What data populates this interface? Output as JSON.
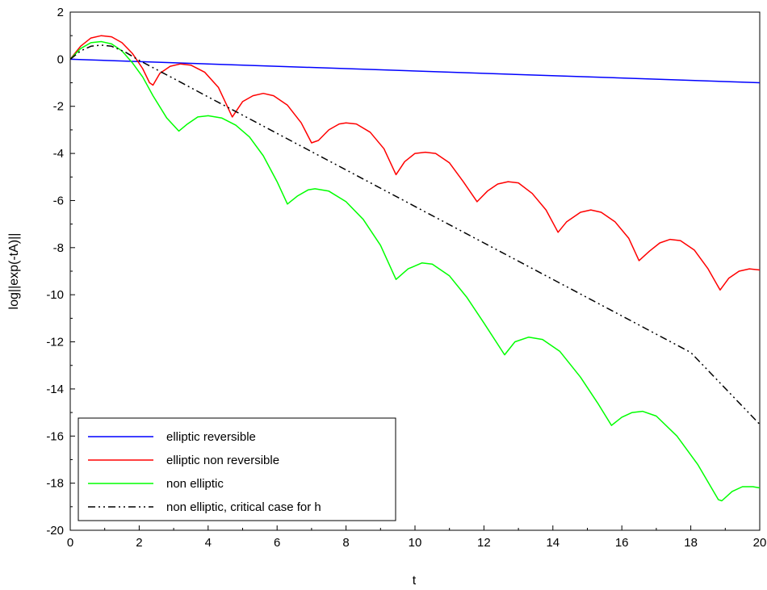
{
  "chart_data": {
    "type": "line",
    "title": "",
    "xlabel": "t",
    "ylabel": "log||exp(-tA)||",
    "xlim": [
      0,
      20
    ],
    "ylim": [
      -20,
      2
    ],
    "x_ticks": [
      0,
      2,
      4,
      6,
      8,
      10,
      12,
      14,
      16,
      18,
      20
    ],
    "y_ticks": [
      2,
      0,
      -2,
      -4,
      -6,
      -8,
      -10,
      -12,
      -14,
      -16,
      -18,
      -20
    ],
    "grid": false,
    "legend_position": "bottom-left",
    "series": [
      {
        "name": "elliptic reversible",
        "color": "#0000ff",
        "style": "solid",
        "points": [
          [
            0,
            0
          ],
          [
            20,
            -1
          ]
        ]
      },
      {
        "name": "elliptic non reversible",
        "color": "#ff0000",
        "style": "solid",
        "points": [
          [
            0,
            0
          ],
          [
            0.3,
            0.55
          ],
          [
            0.6,
            0.9
          ],
          [
            0.9,
            1.0
          ],
          [
            1.2,
            0.95
          ],
          [
            1.5,
            0.7
          ],
          [
            1.8,
            0.25
          ],
          [
            2.1,
            -0.4
          ],
          [
            2.3,
            -1.0
          ],
          [
            2.4,
            -1.1
          ],
          [
            2.6,
            -0.6
          ],
          [
            2.9,
            -0.3
          ],
          [
            3.2,
            -0.2
          ],
          [
            3.5,
            -0.25
          ],
          [
            3.9,
            -0.55
          ],
          [
            4.3,
            -1.2
          ],
          [
            4.7,
            -2.45
          ],
          [
            5.0,
            -1.8
          ],
          [
            5.3,
            -1.55
          ],
          [
            5.6,
            -1.45
          ],
          [
            5.9,
            -1.55
          ],
          [
            6.3,
            -1.95
          ],
          [
            6.7,
            -2.7
          ],
          [
            7.0,
            -3.55
          ],
          [
            7.2,
            -3.45
          ],
          [
            7.5,
            -3.0
          ],
          [
            7.8,
            -2.75
          ],
          [
            8.0,
            -2.7
          ],
          [
            8.3,
            -2.75
          ],
          [
            8.7,
            -3.1
          ],
          [
            9.1,
            -3.8
          ],
          [
            9.45,
            -4.9
          ],
          [
            9.7,
            -4.35
          ],
          [
            10.0,
            -4.0
          ],
          [
            10.3,
            -3.95
          ],
          [
            10.6,
            -4.0
          ],
          [
            11.0,
            -4.4
          ],
          [
            11.4,
            -5.2
          ],
          [
            11.8,
            -6.05
          ],
          [
            12.1,
            -5.6
          ],
          [
            12.4,
            -5.3
          ],
          [
            12.7,
            -5.2
          ],
          [
            13.0,
            -5.25
          ],
          [
            13.4,
            -5.7
          ],
          [
            13.8,
            -6.4
          ],
          [
            14.15,
            -7.35
          ],
          [
            14.4,
            -6.9
          ],
          [
            14.8,
            -6.5
          ],
          [
            15.1,
            -6.4
          ],
          [
            15.4,
            -6.5
          ],
          [
            15.8,
            -6.9
          ],
          [
            16.2,
            -7.6
          ],
          [
            16.5,
            -8.55
          ],
          [
            16.8,
            -8.15
          ],
          [
            17.1,
            -7.8
          ],
          [
            17.4,
            -7.65
          ],
          [
            17.7,
            -7.7
          ],
          [
            18.1,
            -8.1
          ],
          [
            18.5,
            -8.9
          ],
          [
            18.85,
            -9.8
          ],
          [
            19.1,
            -9.3
          ],
          [
            19.4,
            -9.0
          ],
          [
            19.7,
            -8.9
          ],
          [
            20.0,
            -8.95
          ]
        ]
      },
      {
        "name": "non elliptic",
        "color": "#00ff00",
        "style": "solid",
        "points": [
          [
            0,
            0
          ],
          [
            0.3,
            0.45
          ],
          [
            0.6,
            0.7
          ],
          [
            0.9,
            0.75
          ],
          [
            1.2,
            0.65
          ],
          [
            1.5,
            0.35
          ],
          [
            1.8,
            -0.15
          ],
          [
            2.1,
            -0.75
          ],
          [
            2.4,
            -1.55
          ],
          [
            2.8,
            -2.5
          ],
          [
            3.15,
            -3.05
          ],
          [
            3.4,
            -2.75
          ],
          [
            3.7,
            -2.45
          ],
          [
            4.0,
            -2.4
          ],
          [
            4.4,
            -2.5
          ],
          [
            4.8,
            -2.8
          ],
          [
            5.2,
            -3.3
          ],
          [
            5.6,
            -4.1
          ],
          [
            6.0,
            -5.2
          ],
          [
            6.3,
            -6.15
          ],
          [
            6.6,
            -5.8
          ],
          [
            6.9,
            -5.55
          ],
          [
            7.1,
            -5.5
          ],
          [
            7.5,
            -5.6
          ],
          [
            8.0,
            -6.05
          ],
          [
            8.5,
            -6.8
          ],
          [
            9.0,
            -7.9
          ],
          [
            9.45,
            -9.35
          ],
          [
            9.8,
            -8.9
          ],
          [
            10.2,
            -8.65
          ],
          [
            10.5,
            -8.7
          ],
          [
            11.0,
            -9.2
          ],
          [
            11.5,
            -10.1
          ],
          [
            12.0,
            -11.2
          ],
          [
            12.6,
            -12.55
          ],
          [
            12.9,
            -12.0
          ],
          [
            13.3,
            -11.8
          ],
          [
            13.7,
            -11.9
          ],
          [
            14.2,
            -12.4
          ],
          [
            14.8,
            -13.5
          ],
          [
            15.3,
            -14.6
          ],
          [
            15.7,
            -15.55
          ],
          [
            16.0,
            -15.2
          ],
          [
            16.3,
            -15.0
          ],
          [
            16.6,
            -14.95
          ],
          [
            17.0,
            -15.15
          ],
          [
            17.6,
            -16.0
          ],
          [
            18.2,
            -17.2
          ],
          [
            18.8,
            -18.7
          ],
          [
            18.9,
            -18.75
          ],
          [
            19.2,
            -18.35
          ],
          [
            19.5,
            -18.15
          ],
          [
            19.8,
            -18.15
          ],
          [
            20.0,
            -18.2
          ]
        ]
      },
      {
        "name": "non elliptic, critical case for h",
        "color": "#000000",
        "style": "dashdot",
        "points": [
          [
            0,
            0
          ],
          [
            0.3,
            0.35
          ],
          [
            0.6,
            0.55
          ],
          [
            0.9,
            0.6
          ],
          [
            1.2,
            0.55
          ],
          [
            1.6,
            0.3
          ],
          [
            2.0,
            -0.05
          ],
          [
            3.0,
            -0.82
          ],
          [
            4.0,
            -1.6
          ],
          [
            6.0,
            -3.15
          ],
          [
            8.0,
            -4.7
          ],
          [
            10.0,
            -6.25
          ],
          [
            12.0,
            -7.8
          ],
          [
            14.0,
            -9.35
          ],
          [
            16.0,
            -10.9
          ],
          [
            18.0,
            -12.45
          ],
          [
            20.0,
            -15.5
          ]
        ]
      }
    ]
  }
}
